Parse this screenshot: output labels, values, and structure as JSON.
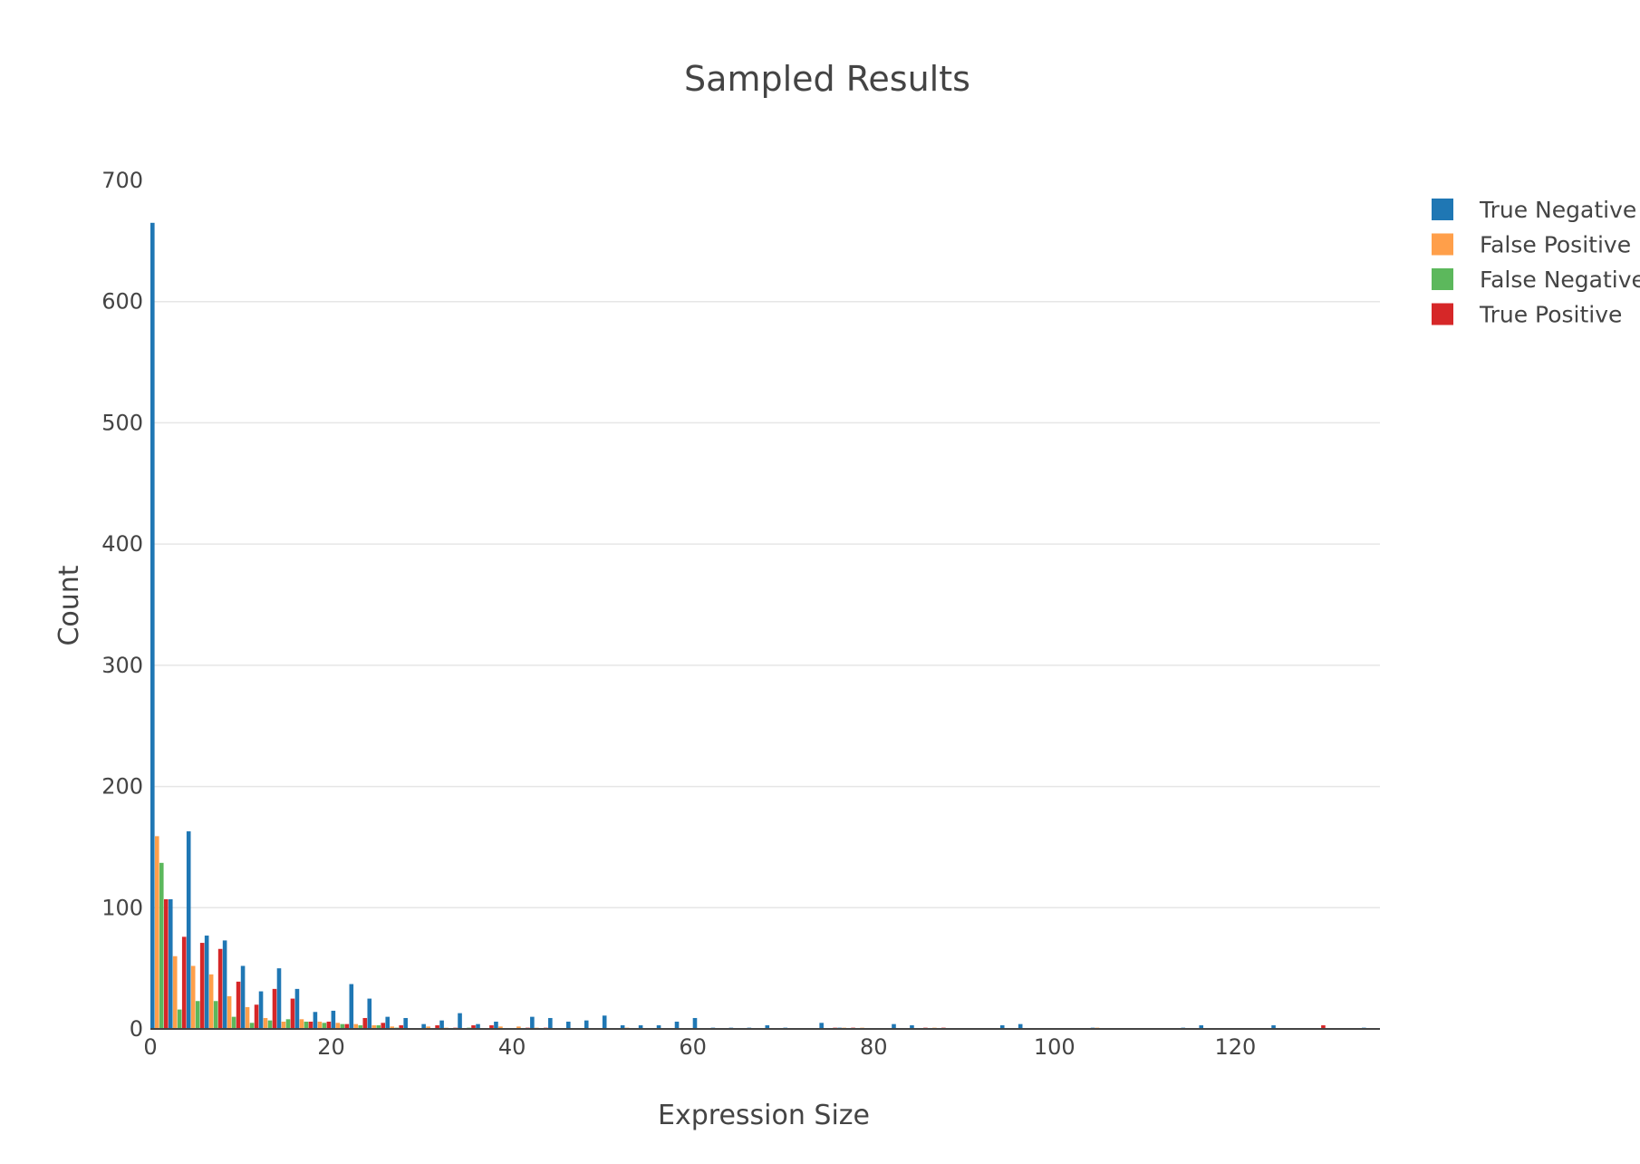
{
  "chart_data": {
    "type": "bar",
    "title": "Sampled Results",
    "xlabel": "Expression Size",
    "ylabel": "Count",
    "xlim": [
      0,
      136
    ],
    "ylim": [
      0,
      700
    ],
    "x_ticks": [
      0,
      20,
      40,
      60,
      80,
      100,
      120
    ],
    "y_ticks": [
      0,
      100,
      200,
      300,
      400,
      500,
      600,
      700
    ],
    "grid": "horizontal",
    "legend_position": "top-right",
    "bin_width": 2,
    "series": [
      {
        "name": "True Negative",
        "color": "#1f77b4",
        "points": [
          [
            0,
            665
          ],
          [
            2,
            107
          ],
          [
            4,
            163
          ],
          [
            6,
            77
          ],
          [
            8,
            73
          ],
          [
            10,
            52
          ],
          [
            12,
            31
          ],
          [
            14,
            50
          ],
          [
            16,
            33
          ],
          [
            18,
            14
          ],
          [
            20,
            15
          ],
          [
            22,
            37
          ],
          [
            24,
            25
          ],
          [
            26,
            10
          ],
          [
            28,
            9
          ],
          [
            30,
            4
          ],
          [
            32,
            7
          ],
          [
            34,
            13
          ],
          [
            36,
            4
          ],
          [
            38,
            6
          ],
          [
            42,
            10
          ],
          [
            44,
            9
          ],
          [
            46,
            6
          ],
          [
            48,
            7
          ],
          [
            50,
            11
          ],
          [
            52,
            3
          ],
          [
            54,
            3
          ],
          [
            56,
            3
          ],
          [
            58,
            6
          ],
          [
            60,
            9
          ],
          [
            62,
            1
          ],
          [
            64,
            1
          ],
          [
            66,
            1
          ],
          [
            68,
            3
          ],
          [
            70,
            1
          ],
          [
            74,
            5
          ],
          [
            76,
            1
          ],
          [
            82,
            4
          ],
          [
            84,
            3
          ],
          [
            94,
            3
          ],
          [
            96,
            4
          ],
          [
            104,
            1
          ],
          [
            114,
            1
          ],
          [
            116,
            3
          ],
          [
            124,
            3
          ],
          [
            134,
            1
          ]
        ]
      },
      {
        "name": "False Positive",
        "color": "#ff9f4a",
        "points": [
          [
            0,
            159
          ],
          [
            2,
            60
          ],
          [
            4,
            52
          ],
          [
            6,
            45
          ],
          [
            8,
            27
          ],
          [
            10,
            18
          ],
          [
            12,
            9
          ],
          [
            14,
            6
          ],
          [
            16,
            8
          ],
          [
            18,
            6
          ],
          [
            20,
            5
          ],
          [
            22,
            4
          ],
          [
            24,
            3
          ],
          [
            26,
            2
          ],
          [
            30,
            2
          ],
          [
            32,
            1
          ],
          [
            38,
            2
          ],
          [
            40,
            2
          ],
          [
            42,
            1
          ],
          [
            52,
            1
          ],
          [
            76,
            1
          ],
          [
            78,
            1
          ],
          [
            86,
            1
          ],
          [
            104,
            1
          ]
        ]
      },
      {
        "name": "False Negative",
        "color": "#5cb85c",
        "points": [
          [
            0,
            137
          ],
          [
            2,
            16
          ],
          [
            4,
            23
          ],
          [
            6,
            23
          ],
          [
            8,
            10
          ],
          [
            10,
            5
          ],
          [
            12,
            7
          ],
          [
            14,
            8
          ],
          [
            16,
            6
          ],
          [
            18,
            5
          ],
          [
            20,
            4
          ],
          [
            22,
            3
          ],
          [
            24,
            3
          ],
          [
            26,
            1
          ],
          [
            34,
            1
          ]
        ]
      },
      {
        "name": "True Positive",
        "color": "#d62728",
        "points": [
          [
            0,
            107
          ],
          [
            2,
            76
          ],
          [
            4,
            71
          ],
          [
            6,
            66
          ],
          [
            8,
            39
          ],
          [
            10,
            20
          ],
          [
            12,
            33
          ],
          [
            14,
            25
          ],
          [
            16,
            6
          ],
          [
            18,
            6
          ],
          [
            20,
            4
          ],
          [
            22,
            9
          ],
          [
            24,
            5
          ],
          [
            26,
            3
          ],
          [
            30,
            3
          ],
          [
            32,
            1
          ],
          [
            34,
            3
          ],
          [
            36,
            3
          ],
          [
            40,
            1
          ],
          [
            42,
            1
          ],
          [
            74,
            1
          ],
          [
            76,
            1
          ],
          [
            84,
            1
          ],
          [
            86,
            1
          ],
          [
            128,
            3
          ]
        ]
      }
    ]
  }
}
